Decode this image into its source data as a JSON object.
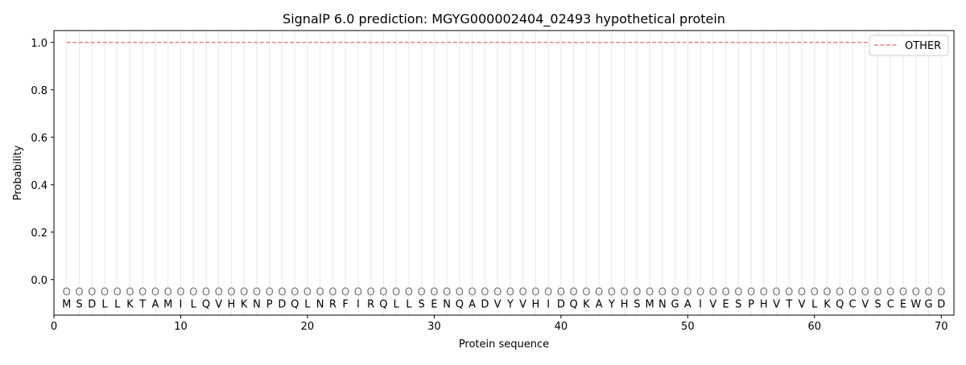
{
  "chart_data": {
    "type": "line",
    "title": "SignalP 6.0 prediction: MGYG000002404_02493 hypothetical protein",
    "xlabel": "Protein sequence",
    "ylabel": "Probability",
    "xlim": [
      0,
      71
    ],
    "ylim": [
      -0.15,
      1.05
    ],
    "xticks": [
      0,
      10,
      20,
      30,
      40,
      50,
      60,
      70
    ],
    "yticks": [
      0.0,
      0.2,
      0.4,
      0.6,
      0.8,
      1.0
    ],
    "ytick_labels": [
      "0.0",
      "0.2",
      "0.4",
      "0.6",
      "0.8",
      "1.0"
    ],
    "grid": "vertical lines at each residue",
    "legend_position": "top-right",
    "sequence": [
      "M",
      "S",
      "D",
      "L",
      "L",
      "K",
      "T",
      "A",
      "M",
      "I",
      "L",
      "Q",
      "V",
      "H",
      "K",
      "N",
      "P",
      "D",
      "Q",
      "L",
      "N",
      "R",
      "F",
      "I",
      "R",
      "Q",
      "L",
      "L",
      "S",
      "E",
      "N",
      "Q",
      "A",
      "D",
      "V",
      "Y",
      "V",
      "H",
      "I",
      "D",
      "Q",
      "K",
      "A",
      "Y",
      "H",
      "S",
      "M",
      "N",
      "G",
      "A",
      "I",
      "V",
      "E",
      "S",
      "P",
      "H",
      "V",
      "T",
      "V",
      "L",
      "K",
      "Q",
      "C",
      "V",
      "S",
      "C",
      "E",
      "W",
      "G",
      "D"
    ],
    "predicted_label": "O",
    "series": [
      {
        "name": "OTHER",
        "color": "#f08080",
        "style": "dashed",
        "x_range": [
          1,
          70
        ],
        "value": 1.0
      }
    ]
  }
}
